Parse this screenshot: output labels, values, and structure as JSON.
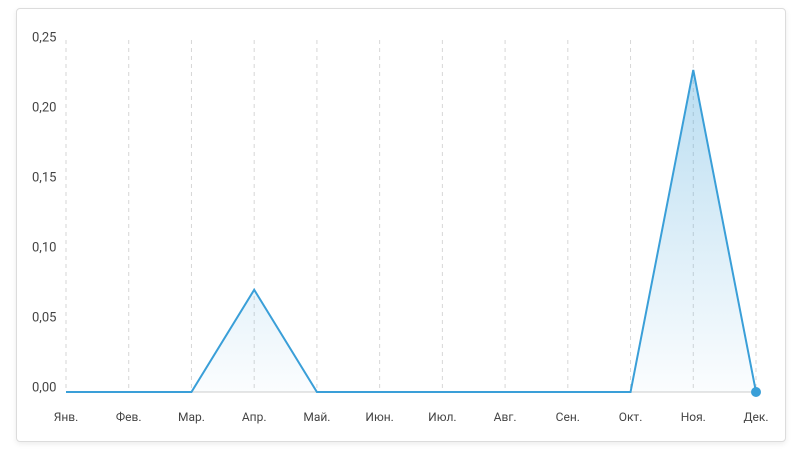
{
  "chart_data": {
    "type": "area",
    "categories": [
      "Янв.",
      "Фев.",
      "Мар.",
      "Апр.",
      "Май.",
      "Июн.",
      "Июл.",
      "Авг.",
      "Сен.",
      "Окт.",
      "Ноя.",
      "Дек."
    ],
    "values": [
      0,
      0,
      0,
      0.073,
      0,
      0,
      0,
      0,
      0,
      0,
      0.23,
      0
    ],
    "color": "#3a9fd8",
    "ylim": [
      0,
      0.25
    ],
    "yticks": [
      {
        "value": 0,
        "label": "0,00"
      },
      {
        "value": 0.05,
        "label": "0,05"
      },
      {
        "value": 0.1,
        "label": "0,10"
      },
      {
        "value": 0.15,
        "label": "0,15"
      },
      {
        "value": 0.2,
        "label": "0,20"
      },
      {
        "value": 0.25,
        "label": "0,25"
      }
    ],
    "grid": true
  }
}
